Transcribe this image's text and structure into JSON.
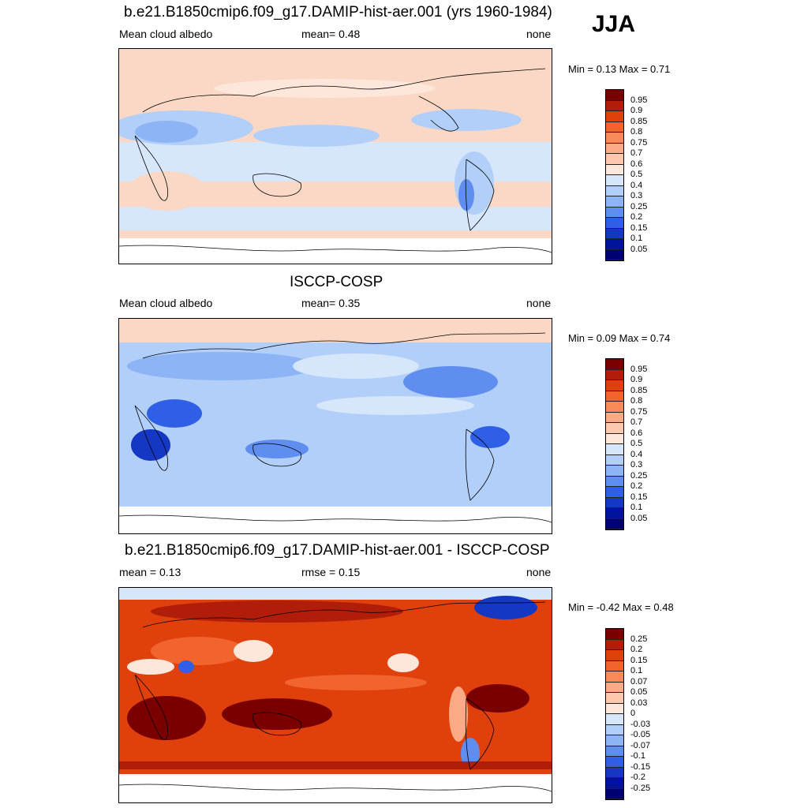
{
  "season": "JJA",
  "panels": [
    {
      "title": "b.e21.B1850cmip6.f09_g17.DAMIP-hist-aer.001 (yrs 1960-1984)",
      "left_label": "Mean cloud albedo",
      "center_label": "mean=   0.48",
      "right_label": "none",
      "minmax": "Min =   0.13 Max =   0.71",
      "colorbar_labels": [
        "0.95",
        "0.9",
        "0.85",
        "0.8",
        "0.75",
        "0.7",
        "0.6",
        "0.5",
        "0.4",
        "0.3",
        "0.25",
        "0.2",
        "0.15",
        "0.1",
        "0.05"
      ],
      "colorbar_colors": [
        "#7a0000",
        "#b01e0a",
        "#e0400c",
        "#f2642e",
        "#f7895a",
        "#fbaa88",
        "#fdc8ae",
        "#fde6da",
        "#d6e6fb",
        "#b2cffa",
        "#8db4f5",
        "#5f8df0",
        "#2f5fe6",
        "#1438c4",
        "#00139a",
        "#000070"
      ]
    },
    {
      "title": "ISCCP-COSP",
      "left_label": "Mean cloud albedo",
      "center_label": "mean=   0.35",
      "right_label": "none",
      "minmax": "Min =   0.09 Max =   0.74",
      "colorbar_labels": [
        "0.95",
        "0.9",
        "0.85",
        "0.8",
        "0.75",
        "0.7",
        "0.6",
        "0.5",
        "0.4",
        "0.3",
        "0.25",
        "0.2",
        "0.15",
        "0.1",
        "0.05"
      ],
      "colorbar_colors": [
        "#7a0000",
        "#b01e0a",
        "#e0400c",
        "#f2642e",
        "#f7895a",
        "#fbaa88",
        "#fdc8ae",
        "#fde6da",
        "#d6e6fb",
        "#b2cffa",
        "#8db4f5",
        "#5f8df0",
        "#2f5fe6",
        "#1438c4",
        "#00139a",
        "#000070"
      ]
    },
    {
      "title": "b.e21.B1850cmip6.f09_g17.DAMIP-hist-aer.001 - ISCCP-COSP",
      "left_label": "mean =   0.13",
      "center_label": "rmse =   0.15",
      "right_label": "none",
      "minmax": "Min =  -0.42 Max =   0.48",
      "colorbar_labels": [
        "0.25",
        "0.2",
        "0.15",
        "0.1",
        "0.07",
        "0.05",
        "0.03",
        "0",
        "-0.03",
        "-0.05",
        "-0.07",
        "-0.1",
        "-0.15",
        "-0.2",
        "-0.25"
      ],
      "colorbar_colors": [
        "#7a0000",
        "#b01e0a",
        "#e0400c",
        "#f2642e",
        "#f7895a",
        "#fbaa88",
        "#fdc8ae",
        "#fde6da",
        "#d6e6fb",
        "#b2cffa",
        "#8db4f5",
        "#5f8df0",
        "#2f5fe6",
        "#1438c4",
        "#00139a",
        "#000070"
      ]
    }
  ]
}
